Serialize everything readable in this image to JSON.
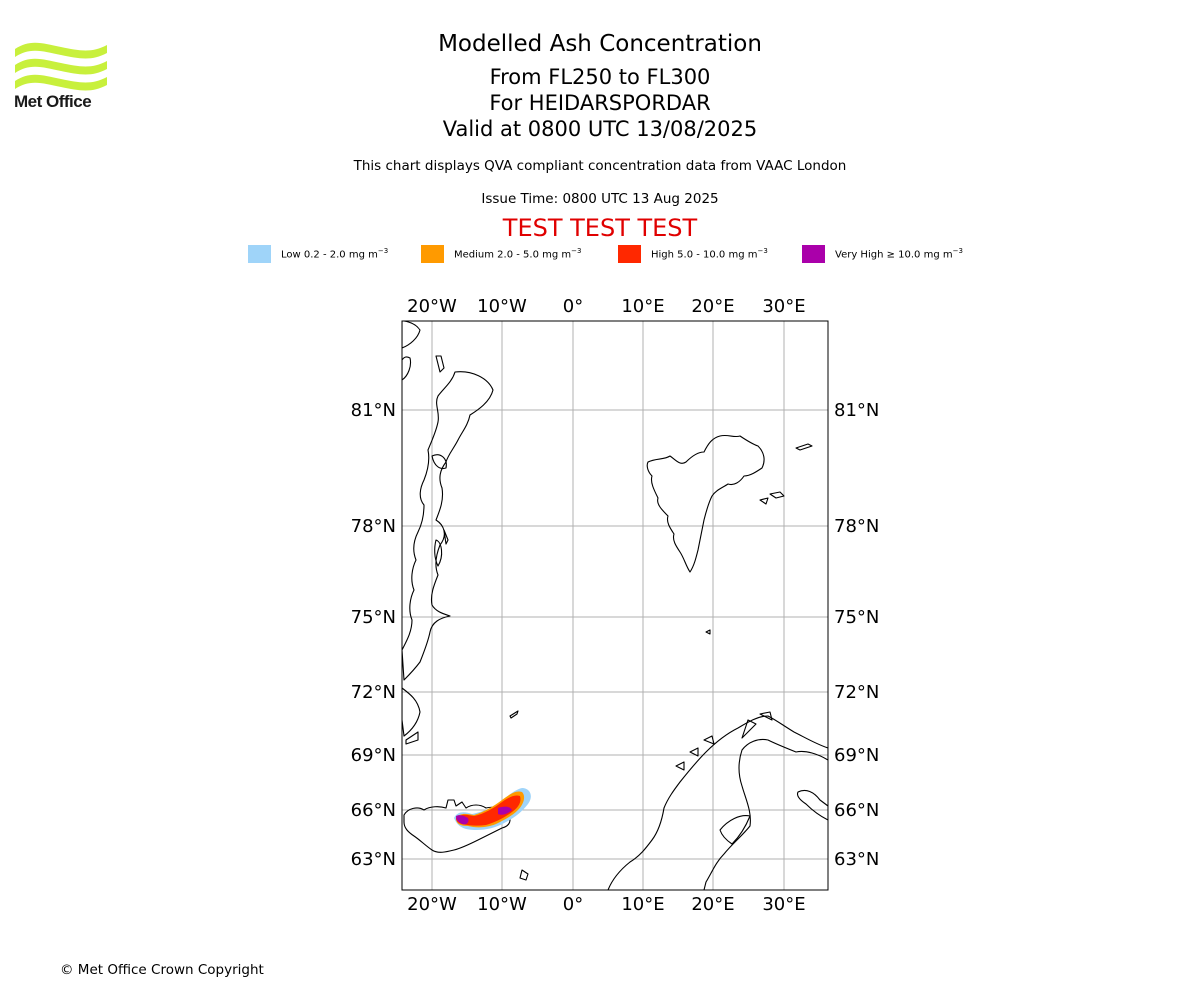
{
  "logo": {
    "text": "Met Office",
    "colors": {
      "waves": "#c8f03c",
      "text": "#1a1a1a"
    }
  },
  "header": {
    "title": "Modelled Ash Concentration",
    "levels": "From FL250 to FL300",
    "volcano": "For HEIDARSPORDAR",
    "valid": "Valid at 0800 UTC 13/08/2025",
    "source_note": "This chart displays QVA compliant concentration data from VAAC London",
    "issue_time": "Issue Time: 0800 UTC 13 Aug 2025",
    "test_banner": "TEST TEST TEST"
  },
  "legend": {
    "unit": "mg m",
    "unit_exp": "−3",
    "items": [
      {
        "label": "Low 0.2 - 2.0",
        "color": "#9fd4f9"
      },
      {
        "label": "Medium 2.0 - 5.0",
        "color": "#ff9a00"
      },
      {
        "label": "High 5.0 - 10.0",
        "color": "#ff2800"
      },
      {
        "label": "Very High  ≥  10.0",
        "color": "#aa00aa"
      }
    ]
  },
  "map": {
    "lon_labels": [
      "20°W",
      "10°W",
      "0°",
      "10°E",
      "20°E",
      "30°E"
    ],
    "lat_labels": [
      "81°N",
      "78°N",
      "75°N",
      "72°N",
      "69°N",
      "66°N",
      "63°N"
    ],
    "gridline_color": "#b0b0b0"
  },
  "footer": {
    "copyright": "© Met Office Crown Copyright"
  }
}
